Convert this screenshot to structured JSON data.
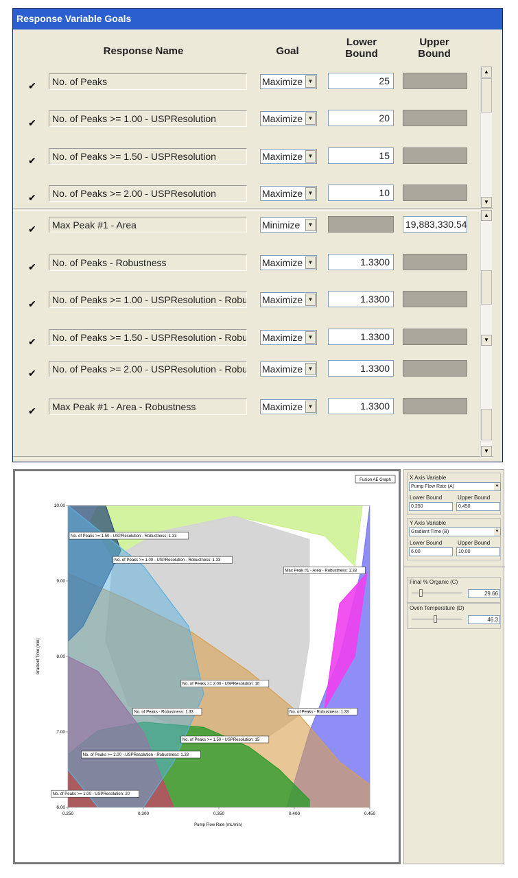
{
  "dialog": {
    "title": "Response Variable Goals",
    "headers": {
      "response_name": "Response Name",
      "goal": "Goal",
      "lower_bound": [
        "Lower",
        "Bound"
      ],
      "upper_bound": [
        "Upper",
        "Bound"
      ]
    },
    "rows": [
      {
        "checked": true,
        "name": "No. of Peaks",
        "goal": "Maximize",
        "lower": "25",
        "upper": ""
      },
      {
        "checked": true,
        "name": "No. of Peaks >= 1.00 - USPResolution",
        "goal": "Maximize",
        "lower": "20",
        "upper": ""
      },
      {
        "checked": true,
        "name": "No. of Peaks >= 1.50 - USPResolution",
        "goal": "Maximize",
        "lower": "15",
        "upper": ""
      },
      {
        "checked": true,
        "name": "No. of Peaks >= 2.00 - USPResolution",
        "goal": "Maximize",
        "lower": "10",
        "upper": ""
      },
      {
        "checked": true,
        "name": "Max Peak #1 - Area",
        "goal": "Minimize",
        "lower": "",
        "upper": "19,883,330.54"
      },
      {
        "checked": true,
        "name": "No. of Peaks - Robustness",
        "goal": "Maximize",
        "lower": "1.3300",
        "upper": ""
      },
      {
        "checked": true,
        "name": "No. of Peaks >= 1.00 - USPResolution - Robu",
        "goal": "Maximize",
        "lower": "1.3300",
        "upper": ""
      },
      {
        "checked": true,
        "name": "No. of Peaks >= 1.50 - USPResolution - Robu",
        "goal": "Maximize",
        "lower": "1.3300",
        "upper": ""
      },
      {
        "checked": true,
        "name": "No. of Peaks >= 2.00 - USPResolution - Robu",
        "goal": "Maximize",
        "lower": "1.3300",
        "upper": ""
      },
      {
        "checked": true,
        "name": "Max Peak #1 - Area - Robustness",
        "goal": "Maximize",
        "lower": "1.3300",
        "upper": ""
      }
    ]
  },
  "graph": {
    "button_label": "Fusion AE Graph",
    "xlabel": "Pump Flow Rate (mL/min)",
    "ylabel": "Gradient Time (min)",
    "x_ticks": [
      "0.250",
      "0.300",
      "0.350",
      "0.400",
      "0.450"
    ],
    "y_ticks": [
      "6.00",
      "7.00",
      "8.00",
      "9.00",
      "10.00"
    ],
    "labels": [
      "No. of Peaks >= 1.50 - USPResolution - Robustness: 1.33",
      "No. of Peaks >= 1.00 - USPResolution - Robustness: 1.33",
      "Max Peak #1 - Area - Robustness: 1.33",
      "No. of Peaks >= 2.00 - USPResolution: 10",
      "No. of Peaks - Robustness: 1.33",
      "No. of Peaks - Robustness: 1.33",
      "No. of Peaks >= 1.50 - USPResolution: 15",
      "No. of Peaks >= 2.00 - USPResolution - Robustness: 1.33",
      "No. of Peaks >= 1.00 - USPResolution: 20"
    ]
  },
  "chart_data": {
    "type": "area",
    "title": "",
    "xlabel": "Pump Flow Rate (mL/min)",
    "ylabel": "Gradient Time (min)",
    "xlim": [
      0.25,
      0.45
    ],
    "ylim": [
      6.0,
      10.0
    ],
    "x_ticks": [
      0.25,
      0.3,
      0.35,
      0.4,
      0.45
    ],
    "y_ticks": [
      6.0,
      7.0,
      8.0,
      9.0,
      10.0
    ],
    "grid": false,
    "annotations": [
      {
        "text": "No. of Peaks >= 1.50 - USPResolution - Robustness: 1.33",
        "x": 0.25,
        "y": 9.6
      },
      {
        "text": "No. of Peaks >= 1.00 - USPResolution - Robustness: 1.33",
        "x": 0.279,
        "y": 9.28
      },
      {
        "text": "Max Peak #1 - Area - Robustness: 1.33",
        "x": 0.392,
        "y": 9.14
      },
      {
        "text": "No. of Peaks >= 2.00 - USPResolution: 10",
        "x": 0.324,
        "y": 7.64
      },
      {
        "text": "No. of Peaks - Robustness: 1.33",
        "x": 0.292,
        "y": 7.27
      },
      {
        "text": "No. of Peaks - Robustness: 1.33",
        "x": 0.395,
        "y": 7.27
      },
      {
        "text": "No. of Peaks >= 1.50 - USPResolution: 15",
        "x": 0.324,
        "y": 6.9
      },
      {
        "text": "No. of Peaks >= 2.00 - USPResolution - Robustness: 1.33",
        "x": 0.258,
        "y": 6.7
      },
      {
        "text": "No. of Peaks >= 1.00 - USPResolution: 20",
        "x": 0.238,
        "y": 6.18
      }
    ],
    "region_colors": [
      "#c9f08a",
      "#d4d4d4",
      "#7a7af5",
      "#2d9a2d",
      "#d9a050",
      "#d23a6a",
      "#2f4f7a",
      "#5ab0e0",
      "#f040f0"
    ]
  },
  "side_panel": {
    "x_axis_variable_label": "X Axis Variable",
    "x_variable": "Pump Flow Rate (A)",
    "x_lower_label": "Lower Bound",
    "x_upper_label": "Upper Bound",
    "x_lower": "0.250",
    "x_upper": "0.450",
    "y_axis_variable_label": "Y Axis Variable",
    "y_variable": "Gradient Time (B)",
    "y_lower_label": "Lower Bound",
    "y_upper_label": "Upper Bound",
    "y_lower": "6.00",
    "y_upper": "10.00",
    "final_organic_label": "Final % Organic (C)",
    "final_organic_value": "29.66",
    "final_organic_level": 0.15,
    "oven_temp_label": "Oven Temperature (D)",
    "oven_temp_value": "46.3",
    "oven_temp_level": 0.45
  }
}
